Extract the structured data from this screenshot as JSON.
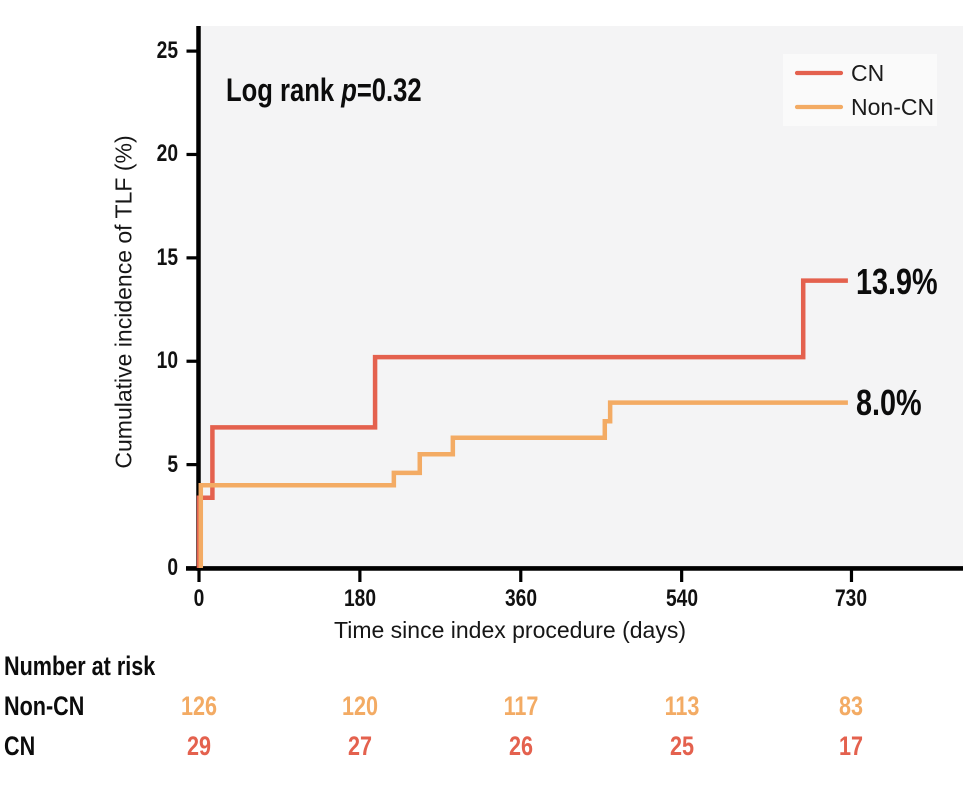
{
  "chart_data": {
    "type": "line",
    "subtype": "kaplan-meier-step-curve",
    "annotation": {
      "prefix": "Log rank ",
      "italic": "p",
      "suffix": "=0.32"
    },
    "xlabel": "Time since index procedure (days)",
    "ylabel": "Cumulative incidence of TLF (%)",
    "x_ticks": [
      "0",
      "180",
      "360",
      "540",
      "730"
    ],
    "y_ticks": [
      "0",
      "5",
      "10",
      "15",
      "20",
      "25"
    ],
    "xlim": [
      -14,
      855
    ],
    "ylim": [
      0,
      26.2
    ],
    "grid": false,
    "plot_background": "#f4f4f5",
    "legend_position": "top-right",
    "series": [
      {
        "name": "CN",
        "color": "#e4614e",
        "end_label": "13.9%",
        "steps_day_pct": [
          [
            0,
            0
          ],
          [
            0,
            3.4
          ],
          [
            15,
            3.4
          ],
          [
            15,
            6.8
          ],
          [
            197,
            6.8
          ],
          [
            197,
            10.2
          ],
          [
            676,
            10.2
          ],
          [
            676,
            13.9
          ],
          [
            726,
            13.9
          ]
        ]
      },
      {
        "name": "Non-CN",
        "color": "#f3ab64",
        "end_label": "8.0%",
        "steps_day_pct": [
          [
            2,
            0
          ],
          [
            2,
            4.0
          ],
          [
            218,
            4.0
          ],
          [
            218,
            4.6
          ],
          [
            247,
            4.6
          ],
          [
            247,
            5.5
          ],
          [
            284,
            5.5
          ],
          [
            284,
            6.3
          ],
          [
            454,
            6.3
          ],
          [
            454,
            7.1
          ],
          [
            460,
            7.1
          ],
          [
            460,
            8.0
          ],
          [
            726,
            8.0
          ]
        ]
      }
    ]
  },
  "risk_table": {
    "title": "Number at risk",
    "columns_days": [
      "0",
      "180",
      "360",
      "540",
      "730"
    ],
    "rows": [
      {
        "label": "Non-CN",
        "color": "#f3ab64",
        "values": [
          "126",
          "120",
          "117",
          "113",
          "83"
        ]
      },
      {
        "label": "CN",
        "color": "#e4614e",
        "values": [
          "29",
          "27",
          "26",
          "25",
          "17"
        ]
      }
    ]
  }
}
